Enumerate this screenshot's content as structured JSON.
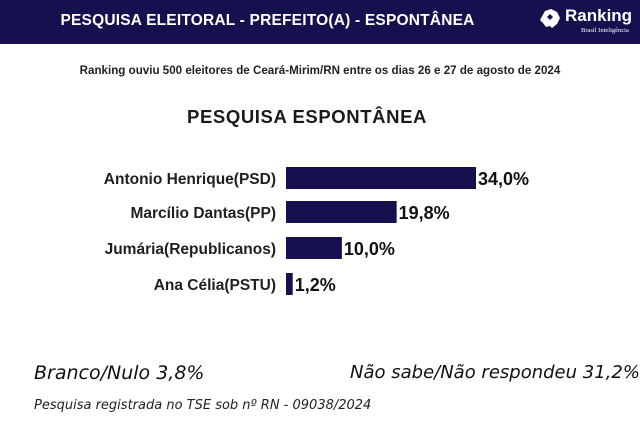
{
  "header": {
    "title": "PESQUISA ELEITORAL - PREFEITO(A) - ESPONTÂNEA",
    "logo_name": "Ranking",
    "logo_sub": "Brasil Inteligência",
    "logo_icon": "map-icon",
    "bg_color": "#16104f"
  },
  "subtitle": "Ranking ouviu 500 eleitores de Ceará-Mirim/RN entre os dias 26 e 27 de agosto de 2024",
  "chart_data": {
    "type": "bar",
    "orientation": "horizontal",
    "title": "PESQUISA ESPONTÂNEA",
    "categories": [
      "Antonio Henrique(PSD)",
      "Marcílio Dantas(PP)",
      "Jumária(Republicanos)",
      "Ana Célia(PSTU)"
    ],
    "values": [
      34.0,
      19.8,
      10.0,
      1.2
    ],
    "value_labels": [
      "34,0%",
      "19,8%",
      "10,0%",
      "1,2%"
    ],
    "bar_color": "#16104f",
    "xlim": [
      0,
      34
    ],
    "grid": false,
    "legend": "none"
  },
  "footer": {
    "branco_nulo": "Branco/Nulo 3,8%",
    "nao_sabe": "Não sabe/Não respondeu 31,2%",
    "registro": "Pesquisa registrada no TSE sob nº RN - 09038/2024"
  }
}
